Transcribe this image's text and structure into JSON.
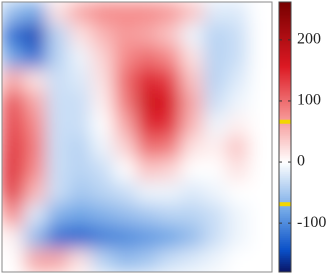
{
  "chart_data": {
    "type": "heatmap",
    "colormap": "blue-white-red",
    "z": [
      [
        -60,
        -80,
        20,
        60,
        80,
        80,
        80,
        70,
        40,
        -20,
        -20,
        0
      ],
      [
        -120,
        -150,
        -40,
        20,
        50,
        70,
        60,
        40,
        -10,
        -40,
        -30,
        0
      ],
      [
        -80,
        -120,
        -40,
        -10,
        30,
        80,
        100,
        80,
        20,
        -40,
        -30,
        0
      ],
      [
        60,
        20,
        -30,
        -20,
        20,
        100,
        150,
        130,
        40,
        -40,
        -20,
        0
      ],
      [
        120,
        60,
        -30,
        -30,
        10,
        90,
        170,
        160,
        60,
        -30,
        -10,
        0
      ],
      [
        130,
        80,
        -30,
        -30,
        0,
        60,
        150,
        140,
        50,
        -10,
        10,
        0
      ],
      [
        140,
        90,
        -30,
        -40,
        -10,
        30,
        100,
        90,
        20,
        10,
        40,
        0
      ],
      [
        150,
        80,
        -30,
        -40,
        -30,
        0,
        40,
        30,
        0,
        0,
        20,
        0
      ],
      [
        140,
        50,
        -30,
        -50,
        -40,
        -30,
        -10,
        -10,
        -20,
        -10,
        0,
        0
      ],
      [
        80,
        -20,
        -70,
        -80,
        -70,
        -60,
        -50,
        -40,
        -40,
        -30,
        -10,
        0
      ],
      [
        10,
        -60,
        -120,
        -130,
        -110,
        -100,
        -90,
        -80,
        -60,
        -30,
        -10,
        0
      ],
      [
        0,
        60,
        60,
        20,
        -40,
        -60,
        -50,
        -30,
        -20,
        -10,
        0,
        0
      ]
    ],
    "clim": [
      -180,
      262
    ],
    "cticks": [
      -100,
      0,
      100,
      200
    ],
    "colorbar_markers": [
      66,
      -69
    ],
    "marker_color": "#f2d600"
  }
}
